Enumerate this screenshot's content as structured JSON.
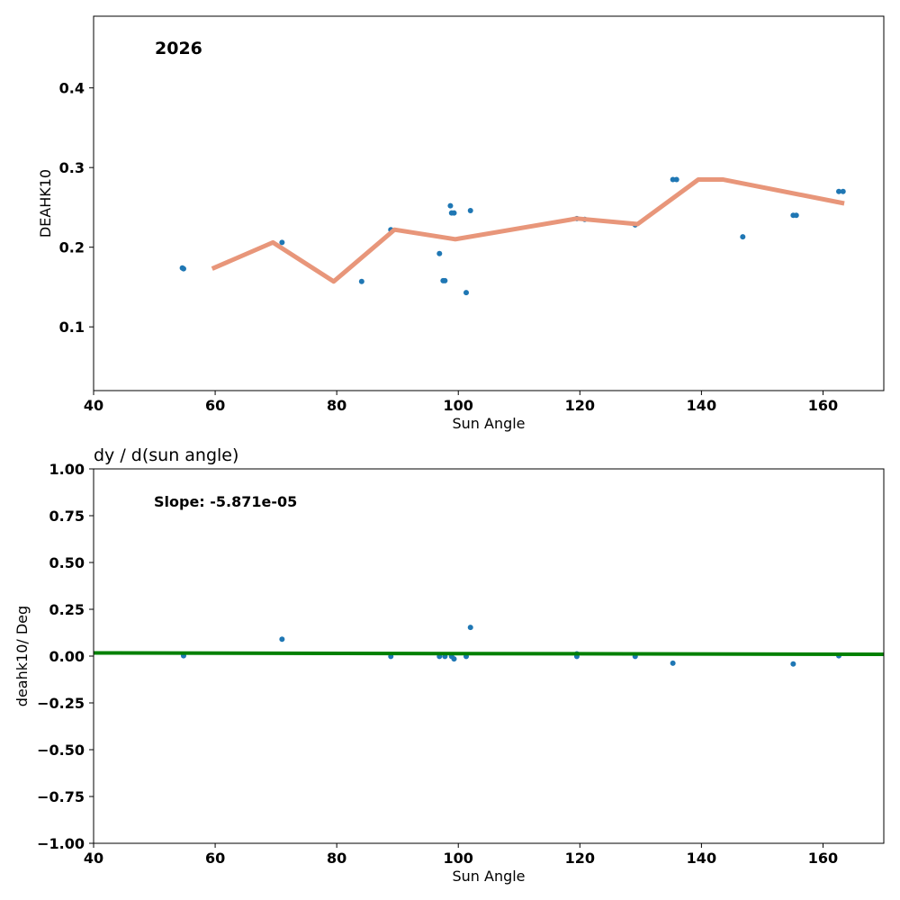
{
  "chart_data": [
    {
      "type": "scatter",
      "annotation": "2026",
      "title": "",
      "xlabel": "Sun Angle",
      "ylabel": "DEAHK10",
      "xlim": [
        40,
        170
      ],
      "ylim": [
        0.02,
        0.49
      ],
      "xticks": [
        40,
        60,
        80,
        100,
        120,
        140,
        160
      ],
      "yticks": [
        0.1,
        0.2,
        0.3,
        0.4
      ],
      "grid": false,
      "colors": {
        "points": "#1f77b4",
        "line": "#e8967a"
      },
      "series": [
        {
          "kind": "points",
          "x": [
            54.6,
            54.8,
            71.0,
            84.1,
            88.9,
            96.9,
            97.5,
            97.8,
            98.7,
            98.9,
            99.3,
            101.3,
            102.0,
            119.5,
            120.8,
            129.1,
            135.3,
            135.9,
            146.8,
            155.1,
            155.6,
            162.6,
            163.3
          ],
          "y": [
            0.174,
            0.173,
            0.206,
            0.157,
            0.222,
            0.192,
            0.158,
            0.158,
            0.252,
            0.243,
            0.243,
            0.143,
            0.246,
            0.236,
            0.235,
            0.228,
            0.285,
            0.285,
            0.213,
            0.24,
            0.24,
            0.27,
            0.27
          ]
        },
        {
          "kind": "line",
          "x": [
            59.5,
            69.5,
            79.5,
            89.5,
            99.5,
            119.5,
            129.5,
            139.5,
            143.5,
            163.5
          ],
          "y": [
            0.173,
            0.206,
            0.157,
            0.222,
            0.21,
            0.236,
            0.229,
            0.285,
            0.285,
            0.255
          ]
        }
      ]
    },
    {
      "type": "scatter",
      "title": "dy / d(sun angle)",
      "annotation": "Slope: -5.871e-05",
      "xlabel": "Sun Angle",
      "ylabel": "deahk10/ Deg",
      "xlim": [
        40,
        170
      ],
      "ylim": [
        -1.0,
        1.0
      ],
      "xticks": [
        40,
        60,
        80,
        100,
        120,
        140,
        160
      ],
      "yticks": [
        -1.0,
        -0.75,
        -0.5,
        -0.25,
        0.0,
        0.25,
        0.5,
        0.75,
        1.0
      ],
      "grid": false,
      "colors": {
        "points": "#1f77b4",
        "line": "#008000"
      },
      "series": [
        {
          "kind": "points",
          "x": [
            54.8,
            71.0,
            88.9,
            96.9,
            97.8,
            98.9,
            99.3,
            101.3,
            102.0,
            119.5,
            119.5,
            129.1,
            135.3,
            155.1,
            162.6
          ],
          "y": [
            0.002,
            0.09,
            -0.002,
            -0.002,
            -0.002,
            -0.002,
            -0.015,
            -0.002,
            0.153,
            0.012,
            -0.002,
            -0.002,
            -0.038,
            -0.042,
            0.002
          ]
        },
        {
          "kind": "line",
          "x": [
            40,
            170
          ],
          "y": [
            0.017,
            0.0094
          ]
        }
      ]
    }
  ]
}
